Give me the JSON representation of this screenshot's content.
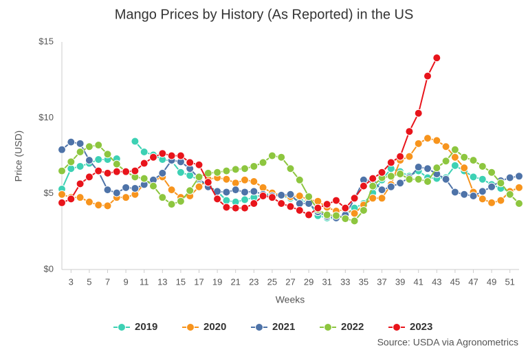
{
  "chart_data": {
    "type": "line",
    "title": "Mango Prices by History (As Reported) in the US",
    "x_label": "Weeks",
    "y_label": "Price (USD)",
    "source": "Source: USDA via Agronometrics",
    "x": [
      2,
      3,
      4,
      5,
      6,
      7,
      8,
      9,
      10,
      11,
      12,
      13,
      14,
      15,
      16,
      17,
      18,
      19,
      20,
      21,
      22,
      23,
      24,
      25,
      26,
      27,
      28,
      29,
      30,
      31,
      32,
      33,
      34,
      35,
      36,
      37,
      38,
      39,
      40,
      41,
      42,
      43,
      44,
      45,
      46,
      47,
      48,
      49,
      50,
      51,
      52
    ],
    "xlim": [
      2,
      52
    ],
    "xticks": [
      3,
      5,
      7,
      9,
      11,
      13,
      15,
      17,
      19,
      21,
      23,
      25,
      27,
      29,
      31,
      33,
      35,
      37,
      39,
      41,
      43,
      45,
      47,
      49,
      51
    ],
    "ylim": [
      0,
      15
    ],
    "yticks": [
      {
        "value": 0,
        "label": "$0"
      },
      {
        "value": 5,
        "label": "$5"
      },
      {
        "value": 10,
        "label": "$10"
      },
      {
        "value": 15,
        "label": "$15"
      }
    ],
    "grid": false,
    "legend": "bottom",
    "series": [
      {
        "name": "2019",
        "color": "#3dd1b4",
        "values": [
          5.3,
          6.65,
          6.8,
          7.0,
          7.25,
          7.25,
          7.3,
          null,
          8.45,
          7.75,
          7.55,
          7.25,
          7.15,
          6.4,
          6.2,
          5.9,
          5.5,
          5.15,
          4.55,
          4.45,
          4.6,
          4.75,
          4.95,
          5.0,
          4.85,
          4.7,
          4.55,
          4.45,
          3.55,
          3.4,
          3.35,
          3.6,
          4.05,
          4.35,
          5.05,
          5.9,
          6.65,
          6.45,
          6.15,
          6.5,
          6.05,
          6.0,
          6.05,
          6.85,
          6.5,
          6.1,
          5.95,
          5.6,
          5.35,
          5.15,
          5.4
        ]
      },
      {
        "name": "2020",
        "color": "#f7941d",
        "values": [
          4.95,
          4.75,
          4.75,
          4.45,
          4.25,
          4.2,
          4.75,
          4.75,
          4.95,
          5.65,
          5.85,
          6.1,
          5.25,
          4.75,
          4.85,
          5.45,
          5.95,
          6.05,
          5.95,
          5.7,
          5.9,
          5.8,
          5.4,
          5.05,
          4.9,
          4.8,
          4.85,
          4.6,
          4.5,
          4.1,
          3.85,
          3.95,
          3.7,
          4.25,
          4.7,
          4.7,
          5.6,
          7.2,
          7.45,
          8.3,
          8.65,
          8.5,
          8.1,
          7.4,
          6.7,
          5.1,
          4.65,
          4.4,
          4.55,
          5.15,
          5.4
        ]
      },
      {
        "name": "2021",
        "color": "#4e73a8",
        "values": [
          7.9,
          8.4,
          8.3,
          7.2,
          6.45,
          5.25,
          5.05,
          5.4,
          5.35,
          5.6,
          5.9,
          6.35,
          7.2,
          7.1,
          6.65,
          6.0,
          5.45,
          5.15,
          5.1,
          5.25,
          5.1,
          5.15,
          4.95,
          4.85,
          4.9,
          4.95,
          4.35,
          4.35,
          3.8,
          3.5,
          3.4,
          3.6,
          4.65,
          5.9,
          5.85,
          5.25,
          5.45,
          5.7,
          6.05,
          6.75,
          6.65,
          6.3,
          5.95,
          5.1,
          4.95,
          4.85,
          5.15,
          5.45,
          5.85,
          6.05,
          6.15
        ]
      },
      {
        "name": "2022",
        "color": "#8dc63f",
        "values": [
          6.5,
          7.1,
          7.75,
          8.1,
          8.2,
          7.6,
          6.95,
          6.45,
          6.1,
          6.0,
          5.5,
          4.75,
          4.3,
          4.5,
          5.2,
          6.1,
          6.35,
          6.4,
          6.5,
          6.6,
          6.65,
          6.8,
          7.05,
          7.5,
          7.4,
          6.65,
          5.9,
          4.8,
          3.95,
          3.6,
          3.55,
          3.35,
          3.2,
          3.9,
          5.5,
          6.05,
          6.15,
          6.3,
          5.95,
          5.95,
          5.8,
          6.7,
          7.15,
          7.9,
          7.4,
          7.2,
          6.8,
          6.4,
          5.7,
          4.95,
          4.35
        ]
      },
      {
        "name": "2023",
        "color": "#e8141b",
        "values": [
          4.4,
          4.65,
          5.65,
          6.1,
          6.5,
          6.35,
          6.45,
          6.45,
          6.5,
          7.0,
          7.4,
          7.65,
          7.5,
          7.5,
          7.05,
          6.9,
          5.75,
          4.65,
          4.1,
          4.05,
          4.05,
          4.35,
          4.85,
          4.75,
          4.35,
          4.15,
          3.9,
          3.6,
          4.05,
          4.3,
          4.55,
          4.05,
          4.7,
          5.5,
          6.0,
          6.4,
          7.05,
          7.45,
          9.1,
          10.3,
          12.75,
          13.95,
          null,
          null,
          null,
          null,
          null,
          null,
          null,
          null,
          null
        ]
      }
    ]
  }
}
